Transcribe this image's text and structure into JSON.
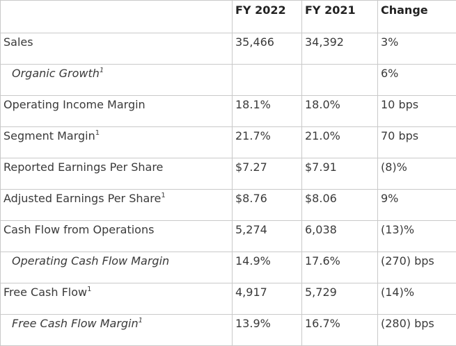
{
  "table": {
    "headers": [
      "",
      "FY 2022",
      "FY 2021",
      "Change"
    ],
    "rows": [
      {
        "label": "Sales",
        "footnote": "",
        "indent": false,
        "fy2022": "35,466",
        "fy2021": "34,392",
        "change": "3%"
      },
      {
        "label": "Organic Growth",
        "footnote": "1",
        "indent": true,
        "fy2022": "",
        "fy2021": "",
        "change": "6%"
      },
      {
        "label": "Operating Income Margin",
        "footnote": "",
        "indent": false,
        "fy2022": "18.1%",
        "fy2021": "18.0%",
        "change": "10 bps"
      },
      {
        "label": "Segment Margin",
        "footnote": "1",
        "indent": false,
        "fy2022": "21.7%",
        "fy2021": "21.0%",
        "change": "70 bps"
      },
      {
        "label": "Reported Earnings Per Share",
        "footnote": "",
        "indent": false,
        "fy2022": "$7.27",
        "fy2021": "$7.91",
        "change": "(8)%"
      },
      {
        "label": "Adjusted Earnings Per Share",
        "footnote": "1",
        "indent": false,
        "fy2022": "$8.76",
        "fy2021": "$8.06",
        "change": "9%"
      },
      {
        "label": "Cash Flow from Operations",
        "footnote": "",
        "indent": false,
        "fy2022": "5,274",
        "fy2021": "6,038",
        "change": "(13)%"
      },
      {
        "label": "Operating Cash Flow Margin",
        "footnote": "",
        "indent": true,
        "fy2022": "14.9%",
        "fy2021": "17.6%",
        "change": "(270) bps"
      },
      {
        "label": "Free Cash Flow",
        "footnote": "1",
        "indent": false,
        "fy2022": "4,917",
        "fy2021": "5,729",
        "change": "(14)%"
      },
      {
        "label": "Free Cash Flow Margin",
        "footnote": "1",
        "indent": true,
        "fy2022": "13.9%",
        "fy2021": "16.7%",
        "change": "(280) bps"
      }
    ]
  }
}
